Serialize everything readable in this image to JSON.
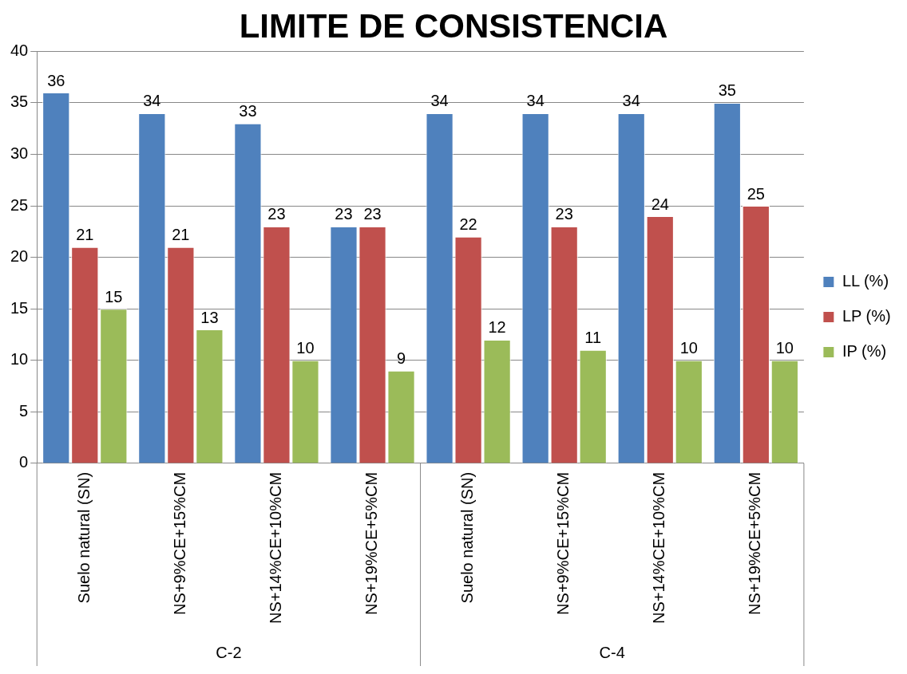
{
  "chart_data": {
    "type": "bar",
    "title": "LIMITE DE CONSISTENCIA",
    "categories": [
      "Suelo natural (SN)",
      "NS+9%CE+15%CM",
      "NS+14%CE+10%CM",
      "NS+19%CE+5%CM",
      "Suelo natural (SN)",
      "NS+9%CE+15%CM",
      "NS+14%CE+10%CM",
      "NS+19%CE+5%CM"
    ],
    "series": [
      {
        "name": "LL (%)",
        "color": "#4f81bd",
        "values": [
          36,
          34,
          33,
          23,
          34,
          34,
          34,
          35
        ]
      },
      {
        "name": "LP (%)",
        "color": "#c0504d",
        "values": [
          21,
          21,
          23,
          23,
          22,
          23,
          24,
          25
        ]
      },
      {
        "name": "IP (%)",
        "color": "#9bbb59",
        "values": [
          15,
          13,
          10,
          9,
          12,
          11,
          10,
          10
        ]
      }
    ],
    "annotations": [
      "C-2",
      "C-4"
    ],
    "ylim": [
      0,
      40
    ],
    "yticks": [
      0,
      5,
      10,
      15,
      20,
      25,
      30,
      35,
      40
    ],
    "grid": "y",
    "legend": "right",
    "data_labels": true
  }
}
